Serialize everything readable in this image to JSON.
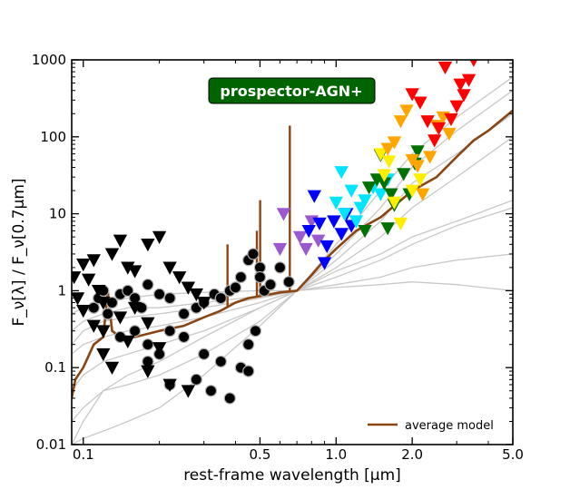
{
  "chart_data": {
    "type": "scatter",
    "title": "",
    "badge": "prospector-AGN+",
    "xlabel": "rest-frame wavelength [μm]",
    "ylabel": "F_ν[λ] / F_ν[0.7μm]",
    "xscale": "log",
    "yscale": "log",
    "xlim": [
      0.09,
      5.0
    ],
    "ylim": [
      0.01,
      1000
    ],
    "x_ticks": [
      {
        "value": 0.1,
        "label": "0.1"
      },
      {
        "value": 0.5,
        "label": "0.5"
      },
      {
        "value": 1.0,
        "label": "1.0"
      },
      {
        "value": 2.0,
        "label": "2.0"
      },
      {
        "value": 5.0,
        "label": "5.0"
      }
    ],
    "y_ticks": [
      {
        "value": 0.01,
        "label": "0.01"
      },
      {
        "value": 0.1,
        "label": "0.1"
      },
      {
        "value": 1,
        "label": "1"
      },
      {
        "value": 10,
        "label": "10"
      },
      {
        "value": 100,
        "label": "100"
      },
      {
        "value": 1000,
        "label": "1000"
      }
    ],
    "legend": {
      "placement": "lower-right",
      "entries": [
        {
          "label": "average model",
          "color": "#8b4513"
        }
      ]
    },
    "colors": {
      "model_lines": "#c8c8c8",
      "average": "#8b4513",
      "badge_bg": "#006400",
      "detections": "#000000"
    },
    "average_model": {
      "x": [
        0.09,
        0.093,
        0.1,
        0.11,
        0.12,
        0.125,
        0.13,
        0.14,
        0.16,
        0.2,
        0.25,
        0.3,
        0.35,
        0.4,
        0.45,
        0.5,
        0.55,
        0.6,
        0.7,
        0.8,
        0.9,
        1.0,
        1.2,
        1.5,
        2.0,
        2.5,
        3.0,
        3.5,
        4.0,
        5.0
      ],
      "y": [
        0.04,
        0.07,
        0.1,
        0.2,
        0.25,
        1.0,
        0.3,
        0.25,
        0.25,
        0.3,
        0.35,
        0.45,
        0.55,
        0.7,
        0.8,
        0.85,
        0.9,
        0.95,
        1.0,
        1.6,
        2.5,
        3.5,
        6,
        9,
        20,
        30,
        55,
        90,
        120,
        220
      ]
    },
    "emission_lines": [
      {
        "x": 0.372,
        "peak": 4
      },
      {
        "x": 0.486,
        "peak": 6
      },
      {
        "x": 0.5007,
        "peak": 15
      },
      {
        "x": 0.656,
        "peak": 140
      }
    ],
    "model_curves": [
      {
        "x": [
          0.09,
          0.1,
          0.12,
          0.15,
          0.2,
          0.3,
          0.5,
          0.7,
          1.0,
          1.5,
          2.0,
          3.0,
          5.0
        ],
        "y": [
          0.01,
          0.02,
          0.05,
          0.08,
          0.12,
          0.25,
          0.6,
          1,
          2,
          5,
          12,
          30,
          100
        ]
      },
      {
        "x": [
          0.09,
          0.1,
          0.12,
          0.15,
          0.2,
          0.3,
          0.5,
          0.7,
          1.0,
          1.5,
          2.0,
          3.0,
          5.0
        ],
        "y": [
          0.15,
          0.2,
          0.25,
          0.3,
          0.35,
          0.45,
          0.7,
          1,
          2.5,
          8,
          25,
          60,
          200
        ]
      },
      {
        "x": [
          0.09,
          0.1,
          0.12,
          0.15,
          0.2,
          0.3,
          0.5,
          0.7,
          1.0,
          1.5,
          2.0,
          3.0,
          5.0
        ],
        "y": [
          0.3,
          0.4,
          0.5,
          0.6,
          0.6,
          0.7,
          0.85,
          1,
          3,
          12,
          40,
          120,
          400
        ]
      },
      {
        "x": [
          0.09,
          0.1,
          0.12,
          0.15,
          0.2,
          0.3,
          0.5,
          0.7,
          1.0,
          1.5,
          2.0,
          3.0,
          5.0
        ],
        "y": [
          0.5,
          0.6,
          0.7,
          0.8,
          0.9,
          0.95,
          1,
          1,
          1.5,
          2.5,
          4,
          7,
          12
        ]
      },
      {
        "x": [
          0.09,
          0.1,
          0.12,
          0.15,
          0.2,
          0.3,
          0.5,
          0.7,
          1.0,
          1.5,
          2.0,
          3.0,
          5.0
        ],
        "y": [
          0.05,
          0.08,
          0.12,
          0.15,
          0.2,
          0.3,
          0.6,
          1,
          1.8,
          3,
          5,
          8,
          15
        ]
      },
      {
        "x": [
          0.09,
          0.1,
          0.12,
          0.15,
          0.2,
          0.3,
          0.5,
          0.7,
          1.0,
          1.5,
          2.0,
          3.0,
          5.0
        ],
        "y": [
          0.02,
          0.03,
          0.05,
          0.06,
          0.08,
          0.15,
          0.4,
          1,
          1.2,
          1.5,
          2,
          2.5,
          3
        ]
      },
      {
        "x": [
          0.09,
          0.1,
          0.12,
          0.15,
          0.2,
          0.3,
          0.5,
          0.7,
          1.0,
          1.5,
          2.0,
          3.0,
          5.0
        ],
        "y": [
          0.01,
          0.012,
          0.015,
          0.02,
          0.03,
          0.08,
          0.35,
          1,
          1.1,
          1.2,
          1.3,
          1.2,
          1.0
        ]
      },
      {
        "x": [
          0.09,
          0.1,
          0.12,
          0.15,
          0.2,
          0.3,
          0.5,
          0.7,
          1.0,
          1.5,
          2.0,
          3.0,
          5.0
        ],
        "y": [
          0.2,
          0.3,
          0.4,
          0.45,
          0.5,
          0.6,
          0.8,
          1,
          4,
          20,
          60,
          180,
          600
        ]
      }
    ],
    "detections": {
      "x": [
        0.11,
        0.115,
        0.12,
        0.125,
        0.13,
        0.14,
        0.15,
        0.16,
        0.17,
        0.18,
        0.2,
        0.22,
        0.25,
        0.28,
        0.3,
        0.33,
        0.35,
        0.38,
        0.4,
        0.42,
        0.45,
        0.47,
        0.5,
        0.5,
        0.52,
        0.55,
        0.6,
        0.65,
        0.14,
        0.16,
        0.18,
        0.2,
        0.22,
        0.25,
        0.3,
        0.35,
        0.42,
        0.45,
        0.48,
        0.18,
        0.22,
        0.28,
        0.32,
        0.38,
        0.45
      ],
      "y": [
        0.6,
        0.8,
        1.0,
        0.5,
        0.7,
        0.9,
        1.0,
        0.8,
        0.6,
        1.2,
        0.9,
        0.8,
        0.5,
        0.6,
        0.7,
        0.9,
        0.8,
        1.0,
        1.1,
        1.5,
        2.5,
        3.0,
        2.0,
        1.5,
        1.0,
        1.2,
        2.0,
        1.3,
        0.25,
        0.3,
        0.2,
        0.15,
        0.3,
        0.25,
        0.15,
        0.12,
        0.1,
        0.2,
        0.3,
        0.12,
        0.06,
        0.07,
        0.05,
        0.04,
        0.09
      ]
    },
    "upper_limits": [
      {
        "color": "#000000",
        "x": [
          0.092,
          0.095,
          0.1,
          0.105,
          0.11,
          0.115,
          0.12,
          0.13,
          0.14,
          0.15,
          0.16,
          0.18,
          0.2,
          0.22,
          0.24,
          0.26,
          0.28,
          0.3,
          0.12,
          0.13,
          0.15,
          0.18,
          0.2,
          0.1,
          0.11,
          0.12,
          0.14,
          0.16,
          0.18,
          0.22,
          0.26
        ],
        "y": [
          1.5,
          0.8,
          2.2,
          1.4,
          2.5,
          1.0,
          0.7,
          3.0,
          4.5,
          2.0,
          1.8,
          4.0,
          5.0,
          2.0,
          1.5,
          1.1,
          0.9,
          0.7,
          0.15,
          0.1,
          0.22,
          0.09,
          0.18,
          0.55,
          0.35,
          0.3,
          0.45,
          0.6,
          0.38,
          0.06,
          0.05
        ]
      },
      {
        "color": "#9b59d0",
        "x": [
          0.6,
          0.62,
          0.72,
          0.76,
          0.8,
          0.85
        ],
        "y": [
          3.5,
          10,
          5,
          3.5,
          8,
          4.5
        ]
      },
      {
        "color": "#0000ff",
        "x": [
          0.78,
          0.82,
          0.86,
          0.92,
          0.98,
          1.05,
          1.1,
          0.9,
          1.15
        ],
        "y": [
          6,
          17,
          7.5,
          3.8,
          8,
          5.5,
          10,
          2.3,
          7
        ]
      },
      {
        "color": "#00e5ff",
        "x": [
          1.0,
          1.05,
          1.08,
          1.15,
          1.2,
          1.25,
          1.3,
          1.4,
          1.5,
          1.6
        ],
        "y": [
          14,
          35,
          10,
          20,
          8,
          12,
          15,
          22,
          18,
          28
        ]
      },
      {
        "color": "#007000",
        "x": [
          1.3,
          1.35,
          1.45,
          1.5,
          1.55,
          1.65,
          1.7,
          1.85,
          1.95,
          2.05,
          1.6,
          2.1
        ],
        "y": [
          6,
          22,
          28,
          58,
          25,
          18,
          13,
          33,
          18,
          45,
          6.5,
          65
        ]
      },
      {
        "color": "#ffee00",
        "x": [
          1.5,
          1.55,
          1.62,
          1.7,
          1.8,
          2.0,
          2.15
        ],
        "y": [
          60,
          32,
          48,
          14,
          7.5,
          20,
          28
        ]
      },
      {
        "color": "#ffa500",
        "x": [
          1.6,
          1.7,
          1.8,
          1.9,
          2.0,
          2.1,
          2.2,
          2.35,
          2.5,
          2.65,
          2.8
        ],
        "y": [
          70,
          85,
          160,
          220,
          50,
          42,
          18,
          55,
          140,
          180,
          110
        ]
      },
      {
        "color": "#ff0000",
        "x": [
          2.0,
          2.15,
          2.3,
          2.45,
          2.55,
          2.7,
          2.85,
          3.0,
          3.1,
          3.2,
          3.35,
          3.5
        ],
        "y": [
          360,
          280,
          160,
          90,
          130,
          800,
          170,
          250,
          480,
          350,
          550,
          1000
        ]
      }
    ]
  }
}
